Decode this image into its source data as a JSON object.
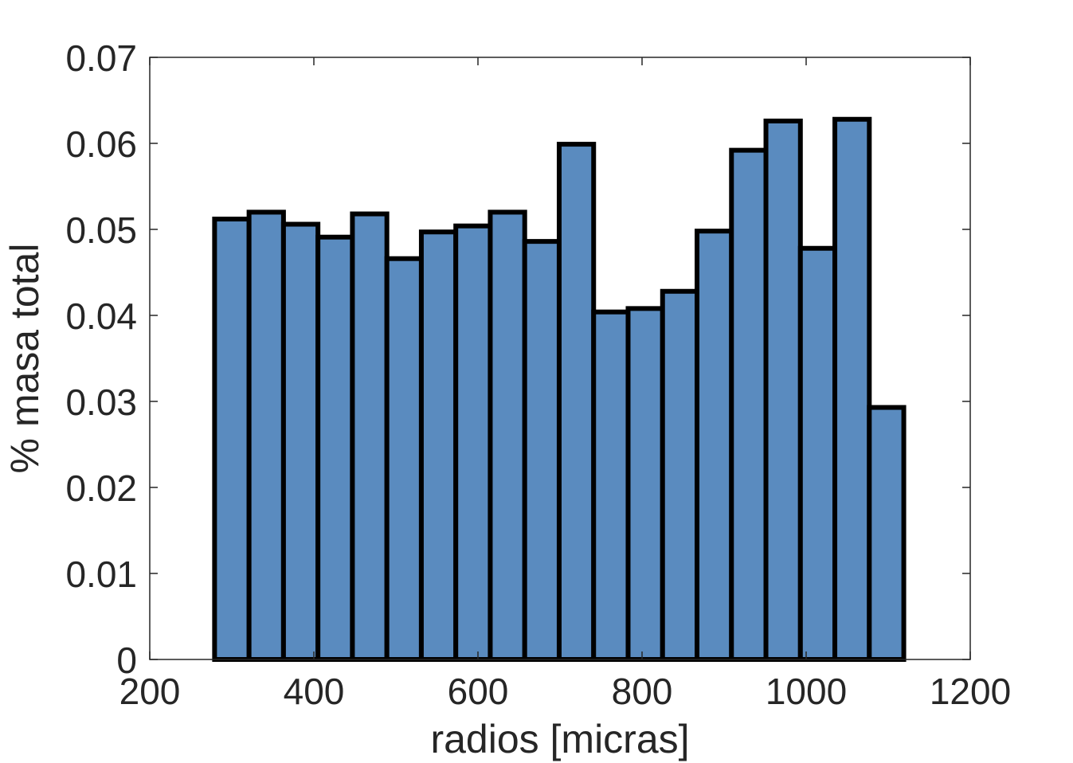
{
  "chart_data": {
    "type": "bar",
    "title": "",
    "xlabel": "radios [micras]",
    "ylabel": "% masa total",
    "xlim": [
      200,
      1200
    ],
    "ylim": [
      0,
      0.07
    ],
    "xticks": [
      200,
      400,
      600,
      800,
      1000,
      1200
    ],
    "xtick_labels": [
      "200",
      "400",
      "600",
      "800",
      "1000",
      "1200"
    ],
    "yticks": [
      0,
      0.01,
      0.02,
      0.03,
      0.04,
      0.05,
      0.06,
      0.07
    ],
    "ytick_labels": [
      "0",
      "0.01",
      "0.02",
      "0.03",
      "0.04",
      "0.05",
      "0.06",
      "0.07"
    ],
    "bin_edges": [
      279,
      321,
      363,
      405,
      447,
      489,
      531,
      573,
      615,
      657,
      699,
      741,
      783,
      825,
      867,
      909,
      951,
      993,
      1035,
      1077,
      1119
    ],
    "values": [
      0.0512,
      0.052,
      0.0506,
      0.0491,
      0.0518,
      0.0466,
      0.0497,
      0.0504,
      0.052,
      0.0486,
      0.0599,
      0.0404,
      0.0408,
      0.0428,
      0.0498,
      0.0592,
      0.0626,
      0.0478,
      0.0628,
      0.0293
    ],
    "bar_color": "#5a8bbf",
    "edge_color": "#000000",
    "grid": false
  }
}
